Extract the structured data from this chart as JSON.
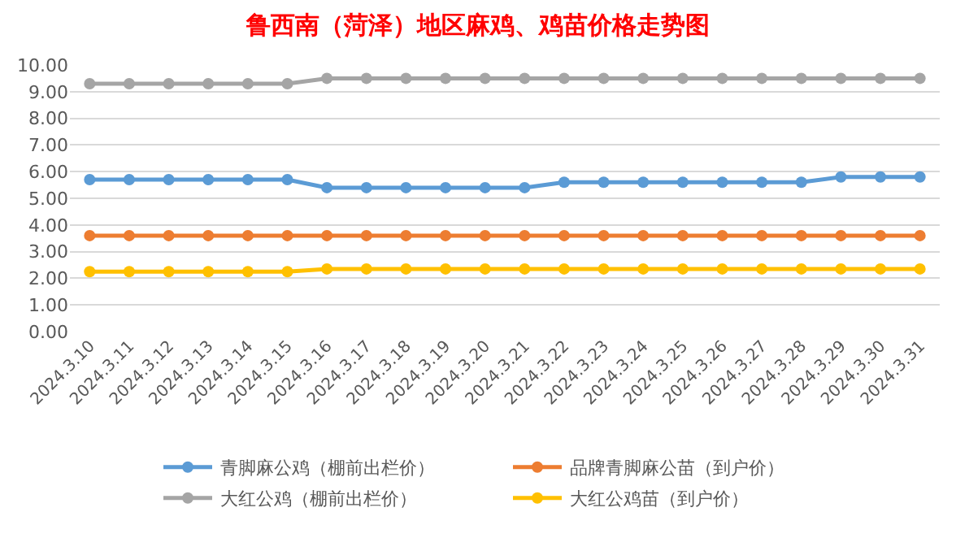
{
  "chart_data": {
    "type": "line",
    "title": "鲁西南（菏泽）地区麻鸡、鸡苗价格走势图",
    "categories": [
      "2024.3.10",
      "2024.3.11",
      "2024.3.12",
      "2024.3.13",
      "2024.3.14",
      "2024.3.15",
      "2024.3.16",
      "2024.3.17",
      "2024.3.18",
      "2024.3.19",
      "2024.3.20",
      "2024.3.21",
      "2024.3.22",
      "2024.3.23",
      "2024.3.24",
      "2024.3.25",
      "2024.3.26",
      "2024.3.27",
      "2024.3.28",
      "2024.3.29",
      "2024.3.30",
      "2024.3.31"
    ],
    "series": [
      {
        "name": "青脚麻公鸡（棚前出栏价）",
        "color": "#5b9bd5",
        "values": [
          5.7,
          5.7,
          5.7,
          5.7,
          5.7,
          5.7,
          5.4,
          5.4,
          5.4,
          5.4,
          5.4,
          5.4,
          5.6,
          5.6,
          5.6,
          5.6,
          5.6,
          5.6,
          5.6,
          5.8,
          5.8,
          5.8
        ]
      },
      {
        "name": "品牌青脚麻公苗（到户价）",
        "color": "#ed7d31",
        "values": [
          3.6,
          3.6,
          3.6,
          3.6,
          3.6,
          3.6,
          3.6,
          3.6,
          3.6,
          3.6,
          3.6,
          3.6,
          3.6,
          3.6,
          3.6,
          3.6,
          3.6,
          3.6,
          3.6,
          3.6,
          3.6,
          3.6
        ]
      },
      {
        "name": "大红公鸡（棚前出栏价）",
        "color": "#a5a5a5",
        "values": [
          9.3,
          9.3,
          9.3,
          9.3,
          9.3,
          9.3,
          9.5,
          9.5,
          9.5,
          9.5,
          9.5,
          9.5,
          9.5,
          9.5,
          9.5,
          9.5,
          9.5,
          9.5,
          9.5,
          9.5,
          9.5,
          9.5
        ]
      },
      {
        "name": "大红公鸡苗（到户价）",
        "color": "#ffc000",
        "values": [
          2.25,
          2.25,
          2.25,
          2.25,
          2.25,
          2.25,
          2.35,
          2.35,
          2.35,
          2.35,
          2.35,
          2.35,
          2.35,
          2.35,
          2.35,
          2.35,
          2.35,
          2.35,
          2.35,
          2.35,
          2.35,
          2.35
        ]
      }
    ],
    "ylim": [
      0,
      10
    ],
    "yticks": [
      {
        "value": 0,
        "label": "0.00"
      },
      {
        "value": 1,
        "label": "1.00"
      },
      {
        "value": 2,
        "label": "2.00"
      },
      {
        "value": 3,
        "label": "3.00"
      },
      {
        "value": 4,
        "label": "4.00"
      },
      {
        "value": 5,
        "label": "5.00"
      },
      {
        "value": 6,
        "label": "6.00"
      },
      {
        "value": 7,
        "label": "7.00"
      },
      {
        "value": 8,
        "label": "8.00"
      },
      {
        "value": 9,
        "label": "9.00"
      },
      {
        "value": 10,
        "label": "10.00"
      }
    ],
    "grid": "y",
    "legend": "bottom",
    "marker": "circle",
    "line_style": "solid"
  }
}
